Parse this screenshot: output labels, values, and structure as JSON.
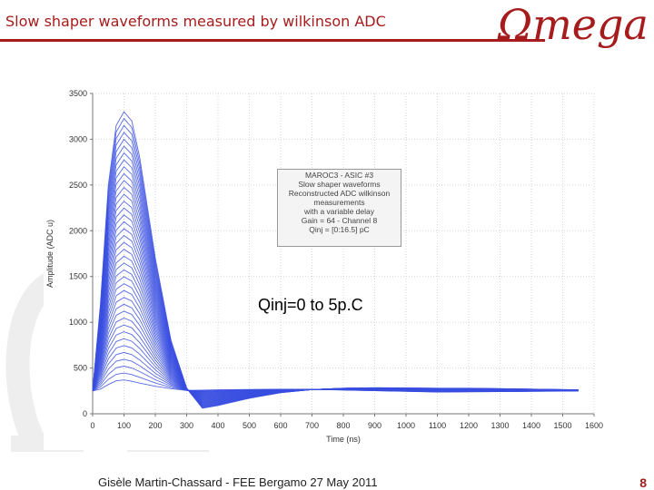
{
  "slide": {
    "title": "Slow shaper waveforms measured by wilkinson ADC",
    "logo_text": "Ωmega",
    "footer": "Gisèle Martin-Chassard - FEE Bergamo 27 May 2011",
    "page_number": "8"
  },
  "colors": {
    "accent": "#a61c1c",
    "series": "#3a4fe0"
  },
  "chart_data": {
    "type": "line",
    "xlabel": "Time (ns)",
    "ylabel": "Amplitude (ADC u)",
    "xlim": [
      0,
      1600
    ],
    "ylim": [
      0,
      3500
    ],
    "xticks": [
      0,
      100,
      200,
      300,
      400,
      500,
      600,
      700,
      800,
      900,
      1000,
      1100,
      1200,
      1300,
      1400,
      1500,
      1600
    ],
    "yticks": [
      0,
      500,
      1000,
      1500,
      2000,
      2500,
      3000,
      3500
    ],
    "grid": true,
    "legend_placement": "center",
    "legend_lines": [
      "MAROC3 - ASIC #3",
      "Slow shaper waveforms",
      "Reconstructed ADC wilkinson",
      "measurements",
      "with a variable delay",
      "Gain = 64 - Channel 8",
      "Qinj = [0:16.5] pC"
    ],
    "annotation": "Qinj=0 to 5p.C",
    "series_family": {
      "count": 40,
      "x": [
        0,
        25,
        50,
        75,
        100,
        125,
        150,
        200,
        250,
        300,
        350,
        400,
        500,
        600,
        700,
        800,
        900,
        1000,
        1100,
        1200,
        1300,
        1400,
        1500,
        1550
      ],
      "lowest": [
        250,
        270,
        320,
        360,
        370,
        355,
        335,
        300,
        275,
        255,
        258,
        262,
        266,
        268,
        266,
        260,
        252,
        245,
        238,
        240,
        242,
        245,
        248,
        250
      ],
      "highest": [
        250,
        1200,
        2500,
        3150,
        3300,
        3200,
        2800,
        1700,
        800,
        280,
        60,
        90,
        170,
        230,
        265,
        280,
        285,
        283,
        280,
        280,
        275,
        270,
        265,
        262
      ]
    }
  }
}
